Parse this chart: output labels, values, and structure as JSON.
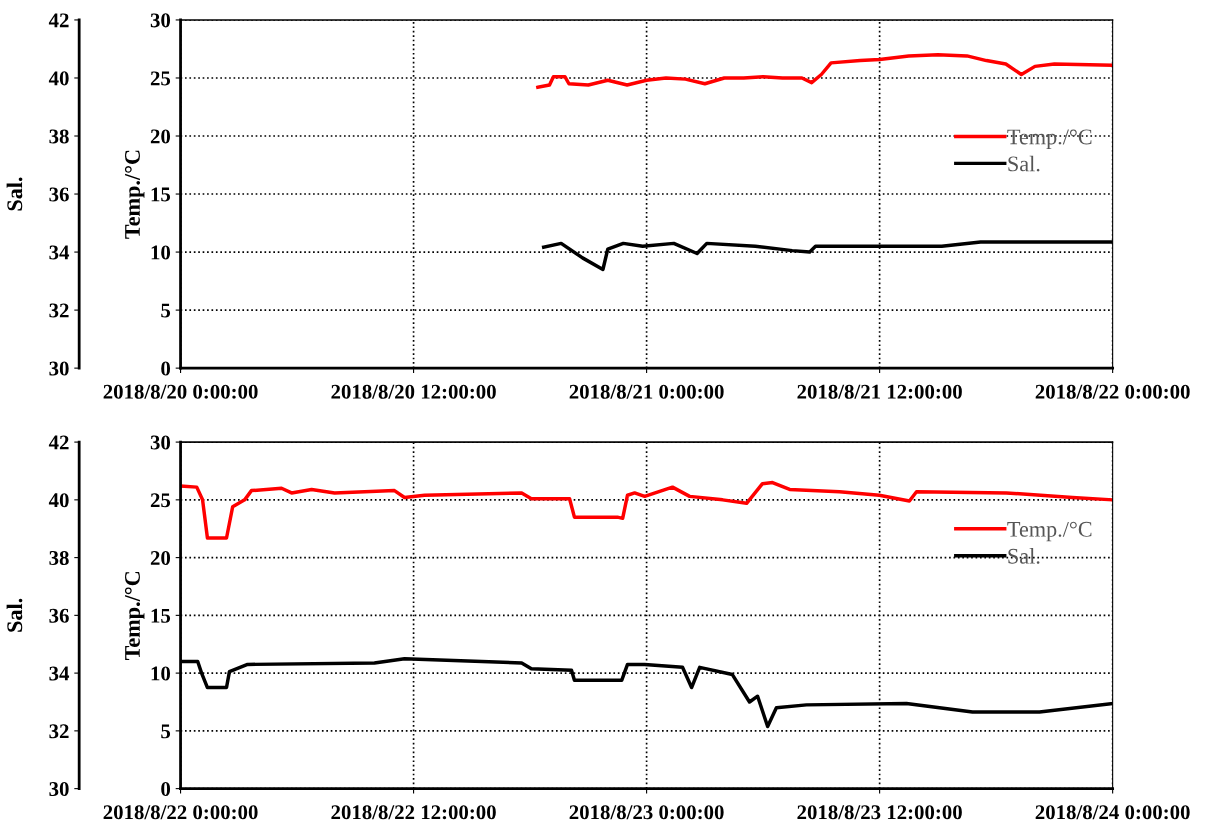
{
  "chart_data": [
    {
      "type": "line",
      "ylabel": "Temp./°C",
      "y2label": "Sal.",
      "xlim": [
        "2018-08-20T00:00",
        "2018-08-22T00:00"
      ],
      "xticks": [
        {
          "value": "2018-08-20T00:00",
          "label": "2018/8/20 0:00:00"
        },
        {
          "value": "2018-08-20T12:00",
          "label": "2018/8/20 12:00:00"
        },
        {
          "value": "2018-08-21T00:00",
          "label": "2018/8/21 0:00:00"
        },
        {
          "value": "2018-08-21T12:00",
          "label": "2018/8/21 12:00:00"
        },
        {
          "value": "2018-08-22T00:00",
          "label": "2018/8/22 0:00:00"
        }
      ],
      "ylim": [
        0,
        30
      ],
      "yticks": [
        0,
        5,
        10,
        15,
        20,
        25,
        30
      ],
      "y2lim": [
        30,
        42
      ],
      "y2ticks": [
        30,
        32,
        34,
        36,
        38,
        40,
        42
      ],
      "grid": true,
      "legend": "right",
      "line_style": "solid",
      "marker": "none",
      "series": [
        {
          "name": "Temp./°C",
          "color": "#ff0000",
          "x": [
            "2018-08-20T18:24",
            "2018-08-20T19:00",
            "2018-08-20T19:12",
            "2018-08-20T19:48",
            "2018-08-20T20:00",
            "2018-08-20T21:00",
            "2018-08-20T22:00",
            "2018-08-20T23:00",
            "2018-08-21T00:00",
            "2018-08-21T01:00",
            "2018-08-21T02:00",
            "2018-08-21T03:00",
            "2018-08-21T04:00",
            "2018-08-21T05:00",
            "2018-08-21T06:00",
            "2018-08-21T07:00",
            "2018-08-21T08:00",
            "2018-08-21T08:30",
            "2018-08-21T09:00",
            "2018-08-21T09:30",
            "2018-08-21T11:00",
            "2018-08-21T12:00",
            "2018-08-21T13:30",
            "2018-08-21T15:00",
            "2018-08-21T16:30",
            "2018-08-21T17:30",
            "2018-08-21T18:30",
            "2018-08-21T19:18",
            "2018-08-21T20:00",
            "2018-08-21T21:00",
            "2018-08-22T00:00"
          ],
          "values": [
            24.2,
            24.4,
            25.1,
            25.1,
            24.5,
            24.4,
            24.8,
            24.4,
            24.8,
            25.0,
            24.9,
            24.5,
            25.0,
            25.0,
            25.1,
            25.0,
            25.0,
            24.6,
            25.3,
            26.3,
            26.5,
            26.6,
            26.9,
            27.0,
            26.9,
            26.5,
            26.2,
            25.3,
            26.0,
            26.2,
            26.1
          ]
        },
        {
          "name": "Sal.",
          "color": "#000000",
          "axis": "y2",
          "x": [
            "2018-08-20T18:42",
            "2018-08-20T19:36",
            "2018-08-20T20:42",
            "2018-08-20T21:45",
            "2018-08-20T22:00",
            "2018-08-20T22:48",
            "2018-08-20T23:48",
            "2018-08-21T01:24",
            "2018-08-21T02:36",
            "2018-08-21T03:06",
            "2018-08-21T05:36",
            "2018-08-21T07:30",
            "2018-08-21T08:24",
            "2018-08-21T08:42",
            "2018-08-21T15:12",
            "2018-08-21T17:12",
            "2018-08-22T00:00"
          ],
          "values": [
            34.17,
            34.3,
            33.8,
            33.4,
            34.1,
            34.3,
            34.2,
            34.3,
            33.95,
            34.3,
            34.2,
            34.05,
            34.0,
            34.2,
            34.2,
            34.35,
            34.35
          ]
        }
      ]
    },
    {
      "type": "line",
      "ylabel": "Temp./°C",
      "y2label": "Sal.",
      "xlim": [
        "2018-08-22T00:00",
        "2018-08-24T00:00"
      ],
      "xticks": [
        {
          "value": "2018-08-22T00:00",
          "label": "2018/8/22 0:00:00"
        },
        {
          "value": "2018-08-22T12:00",
          "label": "2018/8/22 12:00:00"
        },
        {
          "value": "2018-08-23T00:00",
          "label": "2018/8/23 0:00:00"
        },
        {
          "value": "2018-08-23T12:00",
          "label": "2018/8/23 12:00:00"
        },
        {
          "value": "2018-08-24T00:00",
          "label": "2018/8/24 0:00:00"
        }
      ],
      "ylim": [
        0,
        30
      ],
      "yticks": [
        0,
        5,
        10,
        15,
        20,
        25,
        30
      ],
      "y2lim": [
        30,
        42
      ],
      "y2ticks": [
        30,
        32,
        34,
        36,
        38,
        40,
        42
      ],
      "grid": true,
      "legend": "top right",
      "line_style": "solid",
      "marker": "none",
      "series": [
        {
          "name": "Temp./°C",
          "color": "#ff0000",
          "x": [
            "2018-08-22T00:00",
            "2018-08-22T00:50",
            "2018-08-22T01:08",
            "2018-08-22T01:23",
            "2018-08-22T02:22",
            "2018-08-22T02:41",
            "2018-08-22T03:18",
            "2018-08-22T03:39",
            "2018-08-22T05:12",
            "2018-08-22T05:43",
            "2018-08-22T06:45",
            "2018-08-22T07:56",
            "2018-08-22T11:01",
            "2018-08-22T11:32",
            "2018-08-22T12:34",
            "2018-08-22T17:34",
            "2018-08-22T18:04",
            "2018-08-22T20:02",
            "2018-08-22T20:17",
            "2018-08-22T22:30",
            "2018-08-22T22:46",
            "2018-08-22T23:01",
            "2018-08-22T23:23",
            "2018-08-22T23:54",
            "2018-08-23T01:20",
            "2018-08-23T02:13",
            "2018-08-23T03:55",
            "2018-08-23T05:09",
            "2018-08-23T05:58",
            "2018-08-23T06:29",
            "2018-08-23T07:22",
            "2018-08-23T09:56",
            "2018-08-23T11:59",
            "2018-08-23T13:32",
            "2018-08-23T13:54",
            "2018-08-23T18:32",
            "2018-08-23T21:56",
            "2018-08-24T00:00"
          ],
          "values": [
            26.2,
            26.1,
            25.0,
            21.7,
            21.7,
            24.4,
            25.0,
            25.8,
            26.0,
            25.6,
            25.9,
            25.6,
            25.8,
            25.2,
            25.4,
            25.6,
            25.1,
            25.1,
            23.5,
            23.5,
            23.4,
            25.4,
            25.6,
            25.3,
            26.1,
            25.3,
            25.0,
            24.7,
            26.4,
            26.5,
            25.9,
            25.7,
            25.4,
            24.9,
            25.7,
            25.6,
            25.2,
            25.0
          ]
        },
        {
          "name": "Sal.",
          "color": "#000000",
          "axis": "y2",
          "x": [
            "2018-08-22T00:00",
            "2018-08-22T00:53",
            "2018-08-22T01:05",
            "2018-08-22T01:23",
            "2018-08-22T02:22",
            "2018-08-22T02:31",
            "2018-08-22T03:27",
            "2018-08-22T09:59",
            "2018-08-22T11:32",
            "2018-08-22T17:34",
            "2018-08-22T18:04",
            "2018-08-22T20:08",
            "2018-08-22T20:17",
            "2018-08-22T22:43",
            "2018-08-22T23:01",
            "2018-08-22T23:54",
            "2018-08-23T01:51",
            "2018-08-23T02:19",
            "2018-08-23T02:44",
            "2018-08-23T04:25",
            "2018-08-23T05:18",
            "2018-08-23T05:43",
            "2018-08-23T06:14",
            "2018-08-23T06:41",
            "2018-08-23T08:14",
            "2018-08-23T13:23",
            "2018-08-23T16:47",
            "2018-08-23T20:14",
            "2018-08-24T00:00"
          ],
          "values": [
            34.4,
            34.4,
            34.0,
            33.5,
            33.5,
            34.05,
            34.3,
            34.35,
            34.5,
            34.35,
            34.15,
            34.1,
            33.75,
            33.75,
            34.3,
            34.3,
            34.2,
            33.5,
            34.2,
            33.95,
            33.0,
            33.2,
            32.15,
            32.8,
            32.9,
            32.95,
            32.65,
            32.65,
            32.95
          ]
        }
      ]
    }
  ]
}
